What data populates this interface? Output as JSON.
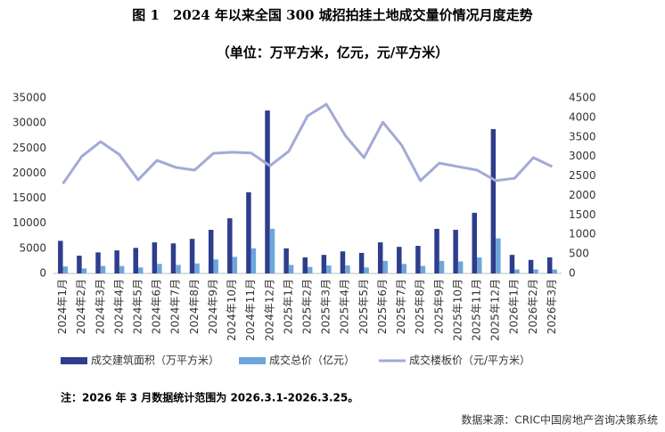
{
  "chart_data": {
    "type": "bar",
    "title": "图 1　2024 年以来全国 300 城招拍挂土地成交量价情况月度走势",
    "subtitle": "（单位：万平方米，亿元，元/平方米）",
    "categories": [
      "2024年1月",
      "2024年2月",
      "2024年3月",
      "2024年4月",
      "2024年5月",
      "2024年6月",
      "2024年7月",
      "2024年8月",
      "2024年9月",
      "2024年10月",
      "2024年11月",
      "2024年12月",
      "2025年1月",
      "2025年2月",
      "2025年3月",
      "2025年4月",
      "2025年5月",
      "2025年6月",
      "2025年7月",
      "2025年8月",
      "2025年9月",
      "2025年10月",
      "2025年11月",
      "2025年12月",
      "2026年1月",
      "2026年2月",
      "2026年3月"
    ],
    "series": [
      {
        "name": "成交建筑面积（万平方米）",
        "type": "bar",
        "color": "#2e3d8c",
        "values": [
          6500,
          3550,
          4200,
          4600,
          5100,
          6200,
          6000,
          6900,
          8700,
          11000,
          16200,
          32500,
          5000,
          3200,
          3700,
          4400,
          4100,
          6200,
          5300,
          5500,
          8900,
          8700,
          12100,
          28800,
          3700,
          2700,
          3200
        ]
      },
      {
        "name": "成交总价（亿元）",
        "type": "bar",
        "color": "#6ea6dc",
        "values": [
          1400,
          1000,
          1500,
          1500,
          1200,
          1900,
          1700,
          2000,
          2800,
          3300,
          5000,
          8900,
          1700,
          1300,
          1600,
          1600,
          1200,
          2500,
          1900,
          1500,
          2500,
          2400,
          3200,
          7000,
          800,
          800,
          800
        ]
      },
      {
        "name": "成交楼板价（元/平方米）",
        "type": "line",
        "axis": "y2",
        "color": "#a2aad6",
        "values": [
          2300,
          3000,
          3380,
          3050,
          2400,
          2900,
          2720,
          2650,
          3080,
          3110,
          3090,
          2760,
          3130,
          4040,
          4340,
          3540,
          2970,
          3880,
          3290,
          2380,
          2830,
          2740,
          2650,
          2380,
          2440,
          2970,
          2740
        ]
      }
    ],
    "ylim": [
      0,
      35000
    ],
    "yticks": [
      0,
      5000,
      10000,
      15000,
      20000,
      25000,
      30000,
      35000
    ],
    "y2lim": [
      0,
      4500
    ],
    "y2ticks": [
      0,
      500,
      1000,
      1500,
      2000,
      2500,
      3000,
      3500,
      4000,
      4500
    ],
    "grid": false,
    "legend": "bottom",
    "note": "注：2026 年 3 月数据统计范围为 2026.3.1-2026.3.25。",
    "source": "数据来源：CRIC中国房地产咨询决策系统"
  }
}
